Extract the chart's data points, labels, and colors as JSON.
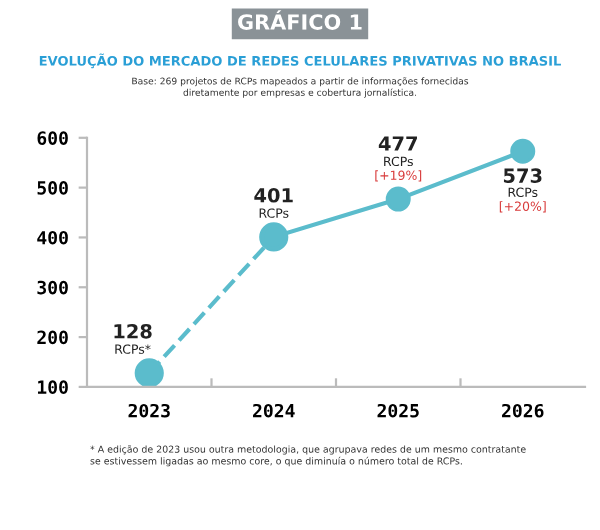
{
  "chart_data": {
    "type": "line",
    "title": "EVOLUÇÃO DO MERCADO DE REDES CELULARES PRIVATIVAS NO BRASIL",
    "subtitle": "Base: 269 projetos de RCPs mapeados a partir de informações fornecidas\ndiretamente por empresas e cobertura jornalística.",
    "annotations": [
      "GRÁFICO 1",
      "* A edição de 2023 usou outra metodologia, que agrupava redes de um mesmo contratante\nse estivessem ligadas ao mesmo core, o que diminuía o número total de RCPs."
    ],
    "categories": [
      "2023",
      "2024",
      "2025",
      "2026"
    ],
    "series": [
      {
        "color": "#5bbccc",
        "line_style": "dashed",
        "values": [
          128,
          401,
          null,
          null
        ],
        "value_labels": [
          "128\nRCPs*",
          null,
          null,
          null
        ]
      },
      {
        "color": "#5bbccc",
        "line_style": "solid",
        "values": [
          null,
          401,
          477,
          573
        ],
        "value_labels": [
          null,
          "401\nRCPs",
          "477\nRCPs\n[+19%]",
          "573\nRCPs\n[+20%]"
        ]
      }
    ],
    "marker": "circle",
    "ylim": [
      100,
      600
    ],
    "yticks": [
      100,
      200,
      300,
      400,
      500,
      600
    ],
    "grid": false,
    "legend": false
  }
}
